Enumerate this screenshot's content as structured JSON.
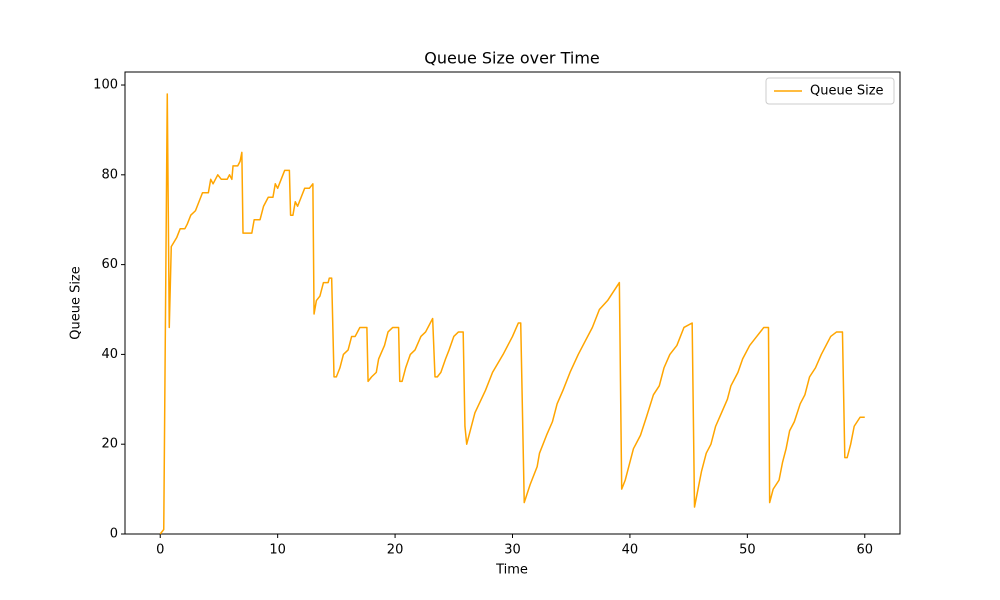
{
  "chart_data": {
    "type": "line",
    "title": "Queue Size over Time",
    "x_label": "Time",
    "y_label": "Queue Size",
    "xlim": [
      -3,
      63
    ],
    "ylim": [
      0,
      102.9
    ],
    "xticks": [
      0,
      10,
      20,
      30,
      40,
      50,
      60
    ],
    "yticks": [
      0,
      20,
      40,
      60,
      80,
      100
    ],
    "legend": "upper right",
    "grid": false,
    "x": [
      0,
      0.3,
      0.6,
      0.77,
      0.94,
      1.4,
      1.7,
      2.1,
      2.3,
      2.6,
      3.0,
      3.3,
      3.6,
      4.1,
      4.3,
      4.5,
      4.9,
      5.2,
      5.7,
      5.9,
      6.1,
      6.2,
      6.6,
      6.8,
      6.95,
      7.05,
      7.8,
      8.0,
      8.5,
      8.8,
      9.2,
      9.6,
      9.8,
      10.0,
      10.3,
      10.6,
      11.0,
      11.1,
      11.3,
      11.5,
      11.7,
      12.0,
      12.3,
      12.7,
      13.0,
      13.1,
      13.3,
      13.6,
      13.9,
      14.3,
      14.4,
      14.6,
      14.8,
      15.0,
      15.3,
      15.6,
      16.0,
      16.3,
      16.6,
      17.0,
      17.6,
      17.7,
      18.0,
      18.4,
      18.6,
      19.1,
      19.4,
      19.8,
      20.3,
      20.4,
      20.6,
      20.9,
      21.3,
      21.7,
      22.2,
      22.6,
      23.2,
      23.4,
      23.6,
      23.9,
      24.3,
      24.6,
      25.0,
      25.4,
      25.8,
      25.95,
      26.1,
      26.8,
      27.7,
      28.3,
      29.2,
      30.0,
      30.5,
      30.7,
      31.0,
      31.5,
      32.1,
      32.3,
      32.9,
      33.4,
      33.8,
      34.3,
      34.9,
      35.6,
      36.2,
      36.8,
      37.4,
      38.1,
      38.6,
      39.1,
      39.3,
      39.6,
      40.3,
      40.9,
      41.4,
      42.0,
      42.5,
      42.9,
      43.4,
      44.0,
      44.6,
      45.3,
      45.5,
      45.8,
      46.1,
      46.5,
      46.9,
      47.3,
      47.8,
      48.3,
      48.6,
      49.2,
      49.6,
      50.2,
      50.8,
      51.4,
      51.8,
      51.9,
      52.2,
      52.7,
      53.0,
      53.3,
      53.6,
      54.0,
      54.5,
      54.9,
      55.3,
      55.8,
      56.3,
      56.7,
      57.1,
      57.6,
      58.1,
      58.3,
      58.5,
      58.8,
      59.1,
      59.6,
      60.0
    ],
    "series": [
      {
        "name": "Queue Size",
        "color": "#ffa500",
        "values": [
          0,
          1,
          98,
          46,
          64,
          66,
          68,
          68,
          69,
          71,
          72,
          74,
          76,
          76,
          79,
          78,
          80,
          79,
          79,
          80,
          79,
          82,
          82,
          83,
          85,
          67,
          67,
          70,
          70,
          73,
          75,
          75,
          78,
          77,
          79,
          81,
          81,
          71,
          71,
          74,
          73,
          75,
          77,
          77,
          78,
          49,
          52,
          53,
          56,
          56,
          57,
          57,
          35,
          35,
          37,
          40,
          41,
          44,
          44,
          46,
          46,
          34,
          35,
          36,
          39,
          42,
          45,
          46,
          46,
          34,
          34,
          37,
          40,
          41,
          44,
          45,
          48,
          35,
          35,
          36,
          39,
          41,
          44,
          45,
          45,
          24,
          20,
          27,
          32,
          36,
          40,
          44,
          47,
          47,
          7,
          11,
          15,
          18,
          22,
          25,
          29,
          32,
          36,
          40,
          43,
          46,
          50,
          52,
          54,
          56,
          10,
          12,
          19,
          22,
          26,
          31,
          33,
          37,
          40,
          42,
          46,
          47,
          6,
          10,
          14,
          18,
          20,
          24,
          27,
          30,
          33,
          36,
          39,
          42,
          44,
          46,
          46,
          7,
          10,
          12,
          16,
          19,
          23,
          25,
          29,
          31,
          35,
          37,
          40,
          42,
          44,
          45,
          45,
          17,
          17,
          20,
          24,
          26,
          26
        ]
      }
    ]
  }
}
